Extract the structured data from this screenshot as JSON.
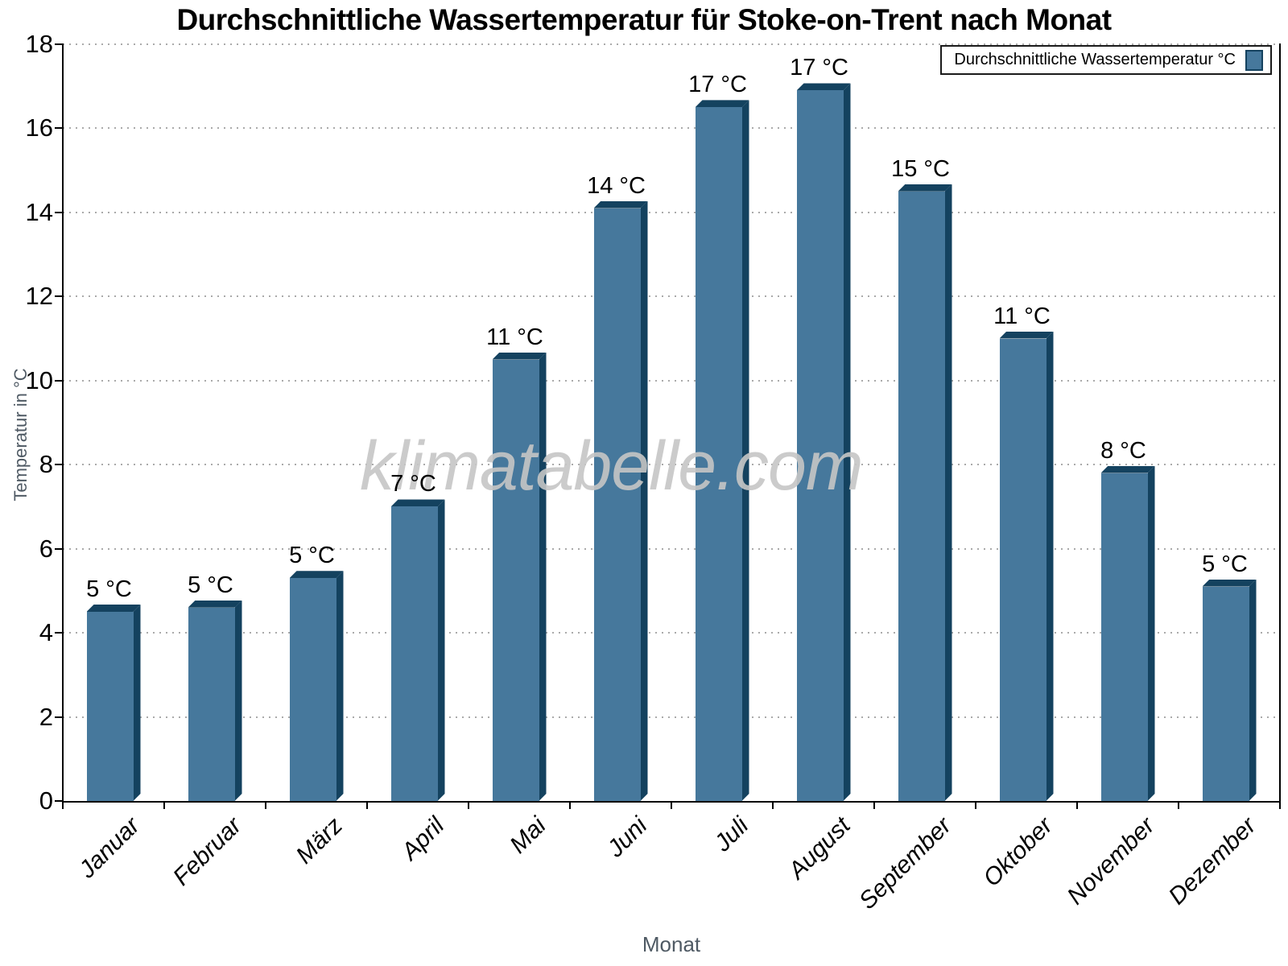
{
  "chart_data": {
    "type": "bar",
    "title": "Durchschnittliche Wassertemperatur für Stoke-on-Trent nach Monat",
    "series_name": "Durchschnittliche Wassertemperatur °C",
    "legend_label": "Durchschnittliche Wassertemperatur °C",
    "legend_position": "top-right",
    "watermark": "klimatabelle.com",
    "xlabel": "Monat",
    "ylabel": "Temperatur in °C",
    "categories": [
      "Januar",
      "Februar",
      "März",
      "April",
      "Mai",
      "Juni",
      "Juli",
      "August",
      "September",
      "Oktober",
      "November",
      "Dezember"
    ],
    "values": [
      4.5,
      4.6,
      5.3,
      7.0,
      10.5,
      14.1,
      16.5,
      16.9,
      14.5,
      11.0,
      7.8,
      5.1
    ],
    "bar_labels": [
      "5 °C",
      "5 °C",
      "5 °C",
      "7 °C",
      "11 °C",
      "14 °C",
      "17 °C",
      "17 °C",
      "15 °C",
      "11 °C",
      "8 °C",
      "5 °C"
    ],
    "ylim": [
      0,
      18
    ],
    "yticks": [
      0,
      2,
      4,
      6,
      8,
      10,
      12,
      14,
      16,
      18
    ],
    "grid": "horizontal dotted",
    "bar_style": "3d",
    "colors": {
      "bar_front": "#46789C",
      "bar_side": "#14425F",
      "grid": "#AAAAAA",
      "axis": "#000000",
      "axis_title": "#4F5A64",
      "watermark": "#C6C6C6"
    }
  }
}
